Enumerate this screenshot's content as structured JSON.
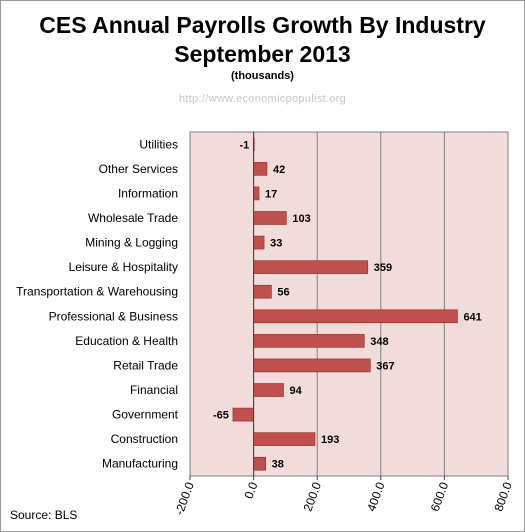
{
  "title": "CES Annual Payrolls Growth By Industry",
  "subtitle_line": "September 2013",
  "units": "(thousands)",
  "watermark": "http://www.economicpopulist.org",
  "source": "Source:  BLS",
  "colors": {
    "bar": "#c0504d",
    "bar_stroke": "#8b2b29",
    "plot_bg": "#f2dcdb",
    "grid": "#808080"
  },
  "chart_data": {
    "type": "bar",
    "orientation": "horizontal",
    "categories": [
      "Utilities",
      "Other Services",
      "Information",
      "Wholesale Trade",
      "Mining & Logging",
      "Leisure & Hospitality",
      "Transportation & Warehousing",
      "Professional & Business",
      "Education & Health",
      "Retail Trade",
      "Financial",
      "Government",
      "Construction",
      "Manufacturing"
    ],
    "values": [
      -1,
      42,
      17,
      103,
      33,
      359,
      56,
      641,
      348,
      367,
      94,
      -65,
      193,
      38
    ],
    "data_labels": [
      "-1",
      "42",
      "17",
      "103",
      "33",
      "359",
      "56",
      "641",
      "348",
      "367",
      "94",
      "-65",
      "193",
      "38"
    ],
    "xlim": [
      -200,
      800
    ],
    "xticks": [
      -200,
      0,
      200,
      400,
      600,
      800
    ],
    "xtick_labels": [
      "-200.0",
      "0.0",
      "200.0",
      "400.0",
      "600.0",
      "800.0"
    ],
    "grid": true
  }
}
